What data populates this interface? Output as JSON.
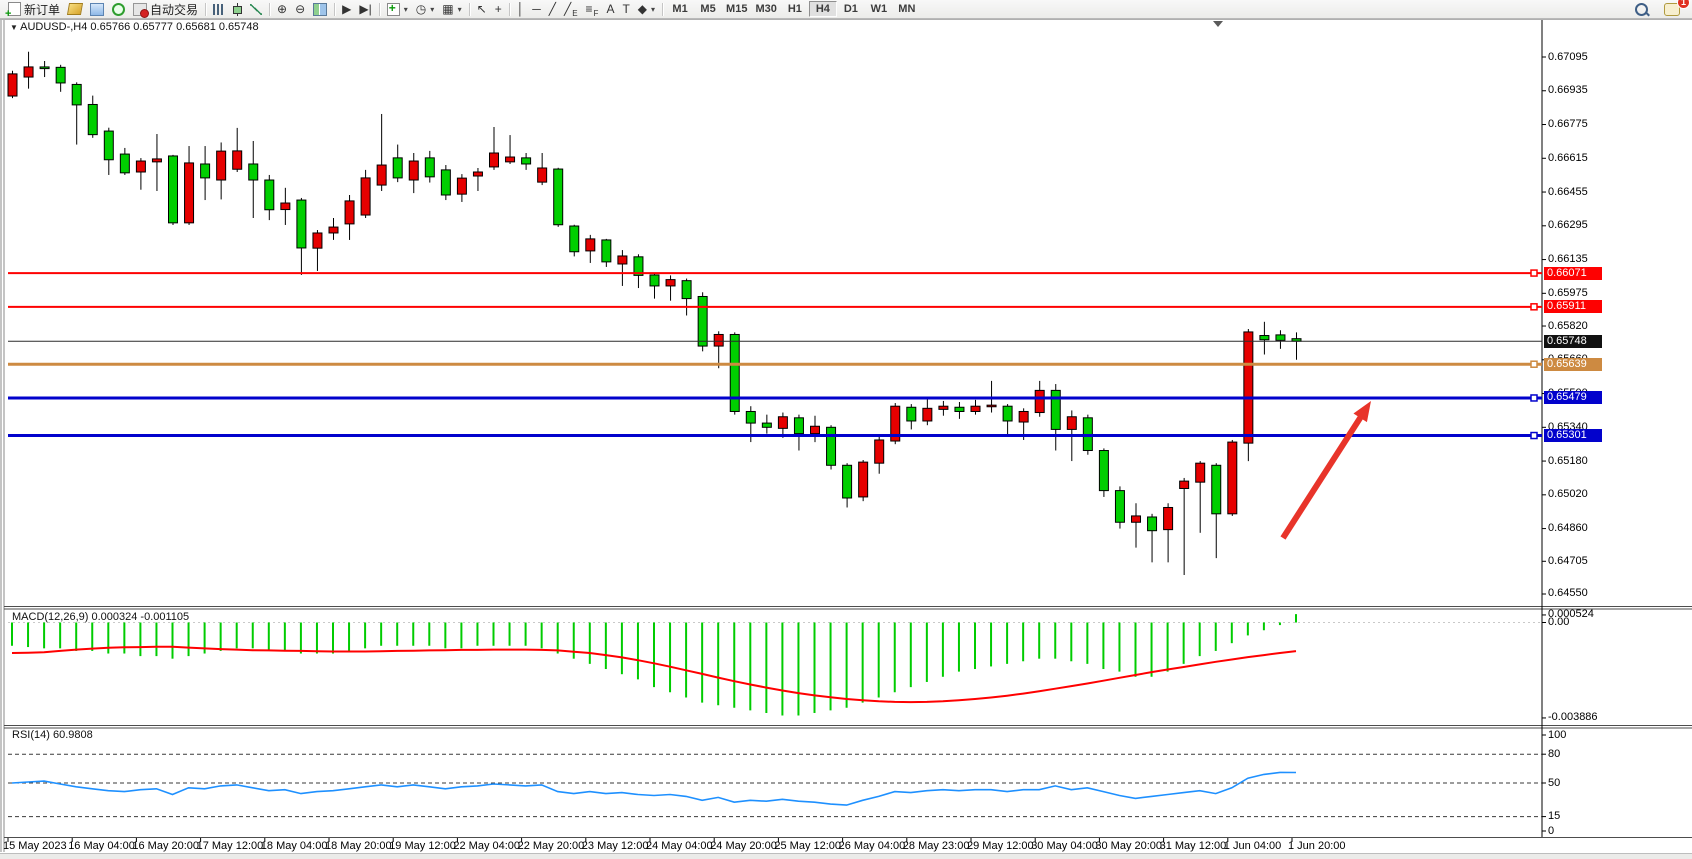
{
  "toolbar": {
    "buttons": [
      {
        "name": "new-order-button",
        "icon": "neworder",
        "label": "新订单"
      },
      {
        "name": "chart-style-button",
        "icon": "yellow"
      },
      {
        "name": "navigator-button",
        "icon": "blue"
      },
      {
        "name": "signals-button",
        "icon": "signal"
      },
      {
        "name": "autotrading-button",
        "icon": "auto",
        "label": "自动交易"
      },
      {
        "sep": true
      },
      {
        "name": "bar-chart-button",
        "icon": "bars"
      },
      {
        "name": "candlestick-chart-button",
        "icon": "candle"
      },
      {
        "name": "line-chart-button",
        "icon": "linec"
      },
      {
        "sep": true
      },
      {
        "name": "zoom-in-button",
        "glyph": "⊕"
      },
      {
        "name": "zoom-out-button",
        "glyph": "⊖"
      },
      {
        "name": "tile-windows-button",
        "icon": "tile"
      },
      {
        "sep": true
      },
      {
        "name": "auto-scroll-button",
        "glyph": "▶"
      },
      {
        "name": "chart-shift-button",
        "glyph": "▶|"
      },
      {
        "sep": true
      },
      {
        "name": "indicators-button",
        "icon": "ind",
        "caret": true
      },
      {
        "name": "periods-button",
        "glyph": "◷",
        "caret": true
      },
      {
        "name": "templates-button",
        "glyph": "▦",
        "caret": true
      },
      {
        "sep": true
      },
      {
        "name": "cursor-button",
        "glyph": "↖"
      },
      {
        "name": "crosshair-button",
        "glyph": "+"
      },
      {
        "sep": true
      },
      {
        "name": "vertical-line-button",
        "glyph": "│"
      },
      {
        "name": "horizontal-line-button",
        "glyph": "─"
      },
      {
        "name": "trendline-button",
        "glyph": "╱"
      },
      {
        "name": "equidistant-channel-button",
        "glyph": "╱",
        "sub": "E"
      },
      {
        "name": "fibonacci-button",
        "glyph": "≡",
        "sub": "F"
      },
      {
        "name": "text-button",
        "glyph": "A"
      },
      {
        "name": "text-label-button",
        "glyph": "T"
      },
      {
        "name": "arrows-button",
        "glyph": "◆",
        "caret": true
      },
      {
        "sep": true
      }
    ],
    "timeframes": [
      {
        "label": "M1"
      },
      {
        "label": "M5"
      },
      {
        "label": "M15"
      },
      {
        "label": "M30"
      },
      {
        "label": "H1"
      },
      {
        "label": "H4",
        "active": true
      },
      {
        "label": "D1"
      },
      {
        "label": "W1"
      },
      {
        "label": "MN"
      }
    ],
    "right_buttons": [
      {
        "name": "search-button",
        "icon": "search"
      },
      {
        "name": "notifications-button",
        "icon": "chat",
        "badge": "1"
      }
    ]
  },
  "chart": {
    "symbol_line": "AUDUSD-,H4  0.65766 0.65777 0.65681 0.65748",
    "symbol": "AUDUSD-",
    "period": "H4",
    "quote_open": "0.65766",
    "quote_high": "0.65777",
    "quote_low": "0.65681",
    "quote_close": "0.65748",
    "price_ticks": [
      "0.67095",
      "0.66935",
      "0.66775",
      "0.66615",
      "0.66455",
      "0.66295",
      "0.66135",
      "0.65975",
      "0.65820",
      "0.65660",
      "0.65500",
      "0.65340",
      "0.65180",
      "0.65020",
      "0.64860",
      "0.64705",
      "0.64550"
    ],
    "time_labels": [
      "15 May 2023",
      "16 May 04:00",
      "16 May 20:00",
      "17 May 12:00",
      "18 May 04:00",
      "18 May 20:00",
      "19 May 12:00",
      "22 May 04:00",
      "22 May 20:00",
      "23 May 12:00",
      "24 May 04:00",
      "24 May 20:00",
      "25 May 12:00",
      "26 May 04:00",
      "28 May 23:00",
      "29 May 12:00",
      "30 May 04:00",
      "30 May 20:00",
      "31 May 12:00",
      "1 Jun 04:00",
      "1 Jun 20:00"
    ]
  },
  "indicators": {
    "macd_label": "MACD(12,26,9) 0.000324 -0.001105",
    "rsi_label": "RSI(14) 60.9808",
    "macd_axis": [
      "0.000524",
      "0.00",
      "-0.003886"
    ],
    "rsi_axis": [
      "100",
      "80",
      "50",
      "15",
      "0"
    ]
  },
  "chart_data": [
    {
      "type": "candlestick",
      "symbol": "AUDUSD-",
      "timeframe": "H4",
      "price_range": [
        0.64488,
        0.67232
      ],
      "colors": {
        "up": "#e60000",
        "down": "#00cf00",
        "wick": "#000000",
        "outline": "#000000"
      },
      "candles_ohlc_note": "arrays are [open,high,low,close]; red body = up, green body = down (Chinese convention)",
      "candles": [
        [
          0.6691,
          0.6703,
          0.669,
          0.67015
        ],
        [
          0.67,
          0.6712,
          0.66945,
          0.67048
        ],
        [
          0.67048,
          0.67076,
          0.67,
          0.6704
        ],
        [
          0.67046,
          0.67058,
          0.6693,
          0.66972
        ],
        [
          0.66965,
          0.66975,
          0.6668,
          0.66868
        ],
        [
          0.6687,
          0.66912,
          0.66712,
          0.66727
        ],
        [
          0.66744,
          0.6676,
          0.66536,
          0.66608
        ],
        [
          0.66635,
          0.66664,
          0.66536,
          0.66546
        ],
        [
          0.6655,
          0.66616,
          0.66466,
          0.66602
        ],
        [
          0.66598,
          0.6673,
          0.6646,
          0.66612
        ],
        [
          0.66626,
          0.66631,
          0.66299,
          0.66309
        ],
        [
          0.66309,
          0.66673,
          0.66299,
          0.66593
        ],
        [
          0.66588,
          0.66673,
          0.66417,
          0.66522
        ],
        [
          0.66512,
          0.6669,
          0.6642,
          0.66649
        ],
        [
          0.66563,
          0.66759,
          0.6655,
          0.6665
        ],
        [
          0.66588,
          0.66697,
          0.66332,
          0.66512
        ],
        [
          0.66512,
          0.66536,
          0.66322,
          0.66371
        ],
        [
          0.66372,
          0.66475,
          0.66299,
          0.66403
        ],
        [
          0.66417,
          0.66427,
          0.66062,
          0.6619
        ],
        [
          0.66189,
          0.66275,
          0.66081,
          0.66261
        ],
        [
          0.66261,
          0.66332,
          0.66228,
          0.66289
        ],
        [
          0.66304,
          0.66441,
          0.66228,
          0.66413
        ],
        [
          0.66346,
          0.6656,
          0.66332,
          0.66522
        ],
        [
          0.66488,
          0.66825,
          0.6646,
          0.66583
        ],
        [
          0.66617,
          0.6668,
          0.66502,
          0.66522
        ],
        [
          0.66512,
          0.6664,
          0.6645,
          0.66602
        ],
        [
          0.66617,
          0.6665,
          0.665,
          0.66527
        ],
        [
          0.6656,
          0.66583,
          0.66417,
          0.66441
        ],
        [
          0.66445,
          0.6654,
          0.66408,
          0.66521
        ],
        [
          0.66531,
          0.66569,
          0.6646,
          0.6655
        ],
        [
          0.66574,
          0.66763,
          0.6656,
          0.6664
        ],
        [
          0.66598,
          0.66725,
          0.66588,
          0.66621
        ],
        [
          0.66617,
          0.6664,
          0.6656,
          0.66588
        ],
        [
          0.66502,
          0.6664,
          0.66488,
          0.66569
        ],
        [
          0.66564,
          0.6657,
          0.6629,
          0.663
        ],
        [
          0.66294,
          0.663,
          0.6615,
          0.66172
        ],
        [
          0.66176,
          0.66252,
          0.66119,
          0.66233
        ],
        [
          0.66228,
          0.66233,
          0.661,
          0.66124
        ],
        [
          0.66114,
          0.6618,
          0.6601,
          0.66152
        ],
        [
          0.66148,
          0.6616,
          0.66,
          0.6606
        ],
        [
          0.66062,
          0.6607,
          0.6595,
          0.6601
        ],
        [
          0.6601,
          0.6606,
          0.6594,
          0.6604
        ],
        [
          0.66035,
          0.66045,
          0.6587,
          0.6595
        ],
        [
          0.6596,
          0.6598,
          0.657,
          0.65725
        ],
        [
          0.65725,
          0.65795,
          0.6562,
          0.6578
        ],
        [
          0.6578,
          0.6579,
          0.654,
          0.65415
        ],
        [
          0.65415,
          0.6544,
          0.6527,
          0.6536
        ],
        [
          0.6536,
          0.654,
          0.6531,
          0.6534
        ],
        [
          0.65335,
          0.6541,
          0.6529,
          0.6539
        ],
        [
          0.65385,
          0.654,
          0.6523,
          0.6531
        ],
        [
          0.6531,
          0.65395,
          0.6527,
          0.65345
        ],
        [
          0.6534,
          0.6535,
          0.6514,
          0.6516
        ],
        [
          0.6516,
          0.6517,
          0.6496,
          0.65005
        ],
        [
          0.6501,
          0.65185,
          0.6499,
          0.65175
        ],
        [
          0.6517,
          0.653,
          0.6512,
          0.6528
        ],
        [
          0.65275,
          0.65455,
          0.6526,
          0.6544
        ],
        [
          0.65435,
          0.6545,
          0.6533,
          0.6537
        ],
        [
          0.6537,
          0.6548,
          0.6535,
          0.6543
        ],
        [
          0.65425,
          0.65465,
          0.65395,
          0.6544
        ],
        [
          0.65435,
          0.6546,
          0.6538,
          0.65415
        ],
        [
          0.65415,
          0.6547,
          0.654,
          0.6544
        ],
        [
          0.65438,
          0.6556,
          0.6541,
          0.65445
        ],
        [
          0.6544,
          0.6545,
          0.653,
          0.6537
        ],
        [
          0.65365,
          0.6543,
          0.6528,
          0.65415
        ],
        [
          0.6541,
          0.6556,
          0.6539,
          0.65515
        ],
        [
          0.65515,
          0.65545,
          0.6523,
          0.6533
        ],
        [
          0.6533,
          0.6542,
          0.6518,
          0.6539
        ],
        [
          0.65385,
          0.654,
          0.6521,
          0.6523
        ],
        [
          0.6523,
          0.6524,
          0.6501,
          0.6504
        ],
        [
          0.6504,
          0.6506,
          0.6486,
          0.6489
        ],
        [
          0.6489,
          0.6498,
          0.6477,
          0.6492
        ],
        [
          0.64915,
          0.6493,
          0.647,
          0.6485
        ],
        [
          0.64855,
          0.6498,
          0.647,
          0.6496
        ],
        [
          0.6505,
          0.651,
          0.6464,
          0.65085
        ],
        [
          0.6508,
          0.6518,
          0.6484,
          0.6517
        ],
        [
          0.6516,
          0.6517,
          0.6472,
          0.6493
        ],
        [
          0.6493,
          0.6528,
          0.6492,
          0.6527
        ],
        [
          0.65265,
          0.65806,
          0.6518,
          0.65792
        ],
        [
          0.65775,
          0.6584,
          0.65685,
          0.65755
        ],
        [
          0.65778,
          0.658,
          0.65712,
          0.65752
        ],
        [
          0.6576,
          0.6579,
          0.6566,
          0.65748
        ]
      ],
      "level_lines": [
        {
          "price": 0.66071,
          "label": "0.66071",
          "color": "#fe0101",
          "width": 2
        },
        {
          "price": 0.65911,
          "label": "0.65911",
          "color": "#fe0101",
          "width": 2
        },
        {
          "price": 0.65748,
          "label": "0.65748",
          "color": "#2b2b2b",
          "width": 1,
          "badge": "#111111"
        },
        {
          "price": 0.65639,
          "label": "0.65639",
          "color": "#cd8a41",
          "width": 3
        },
        {
          "price": 0.65479,
          "label": "0.65479",
          "color": "#0202cc",
          "width": 3
        },
        {
          "price": 0.65301,
          "label": "0.65301",
          "color": "#0202cc",
          "width": 3
        }
      ],
      "annotation_arrow": {
        "from": [
          1283,
          538
        ],
        "to": [
          1371,
          401
        ],
        "color": "#e8342a",
        "width": 6
      }
    },
    {
      "type": "bar",
      "name": "MACD(12,26,9)",
      "last_main": 0.000324,
      "last_signal": -0.001105,
      "ylim": [
        -0.003886,
        0.000524
      ],
      "colors": {
        "histogram": "#00cc00",
        "signal": "#ff0000"
      },
      "histogram": [
        -0.0009,
        -0.00095,
        -0.001,
        -0.001,
        -0.0011,
        -0.0011,
        -0.0012,
        -0.0012,
        -0.0013,
        -0.0013,
        -0.0014,
        -0.0013,
        -0.0012,
        -0.0011,
        -0.001,
        -0.001,
        -0.0011,
        -0.0011,
        -0.0012,
        -0.0012,
        -0.0012,
        -0.0011,
        -0.001,
        -0.0009,
        -0.0009,
        -0.0009,
        -0.0009,
        -0.001,
        -0.001,
        -0.0009,
        -0.0009,
        -0.0009,
        -0.0009,
        -0.001,
        -0.0012,
        -0.0014,
        -0.0016,
        -0.0018,
        -0.002,
        -0.0022,
        -0.0025,
        -0.0027,
        -0.0029,
        -0.0031,
        -0.0032,
        -0.0033,
        -0.0034,
        -0.0035,
        -0.0036,
        -0.0036,
        -0.0035,
        -0.0034,
        -0.0033,
        -0.0031,
        -0.0029,
        -0.0027,
        -0.0025,
        -0.0023,
        -0.0021,
        -0.0019,
        -0.0018,
        -0.0017,
        -0.0016,
        -0.0015,
        -0.0014,
        -0.0014,
        -0.0015,
        -0.0016,
        -0.0018,
        -0.0019,
        -0.0021,
        -0.0021,
        -0.0019,
        -0.0016,
        -0.0013,
        -0.0011,
        -0.0008,
        -0.0005,
        -0.0003,
        -0.0001,
        0.000324
      ],
      "signal": [
        -0.00118,
        -0.00117,
        -0.00115,
        -0.0011,
        -0.00105,
        -0.00101,
        -0.00098,
        -0.00096,
        -0.00095,
        -0.00094,
        -0.00094,
        -0.00097,
        -0.001,
        -0.00103,
        -0.00105,
        -0.00107,
        -0.00108,
        -0.00109,
        -0.0011,
        -0.00111,
        -0.00112,
        -0.00112,
        -0.00112,
        -0.00111,
        -0.0011,
        -0.00109,
        -0.00108,
        -0.00107,
        -0.00106,
        -0.00106,
        -0.00105,
        -0.00105,
        -0.00105,
        -0.00106,
        -0.00108,
        -0.00113,
        -0.00118,
        -0.00126,
        -0.00135,
        -0.00146,
        -0.00158,
        -0.00171,
        -0.00185,
        -0.00199,
        -0.00213,
        -0.00227,
        -0.0024,
        -0.00252,
        -0.00263,
        -0.00273,
        -0.00282,
        -0.00289,
        -0.00296,
        -0.00301,
        -0.00305,
        -0.00307,
        -0.00308,
        -0.00307,
        -0.00305,
        -0.00301,
        -0.00296,
        -0.0029,
        -0.00283,
        -0.00275,
        -0.00266,
        -0.00256,
        -0.00246,
        -0.00236,
        -0.00225,
        -0.00214,
        -0.00203,
        -0.00192,
        -0.00182,
        -0.00172,
        -0.00162,
        -0.00152,
        -0.00143,
        -0.00134,
        -0.00126,
        -0.00118,
        -0.001105
      ]
    },
    {
      "type": "line",
      "name": "RSI(14)",
      "last_value": 60.9808,
      "ylim": [
        0,
        100
      ],
      "levels": [
        80,
        50,
        15
      ],
      "color": "#1e90ff",
      "values": [
        50,
        51,
        52,
        49,
        46,
        44,
        42,
        41,
        43,
        44,
        38,
        45,
        44,
        47,
        48,
        45,
        42,
        43,
        39,
        41,
        42,
        44,
        46,
        48,
        46,
        48,
        46,
        44,
        46,
        47,
        49,
        48,
        47,
        48,
        41,
        39,
        41,
        39,
        40,
        38,
        37,
        38,
        36,
        32,
        35,
        30,
        32,
        31,
        33,
        31,
        30,
        28,
        27,
        32,
        36,
        41,
        40,
        42,
        43,
        42,
        43,
        43,
        41,
        43,
        43,
        47,
        43,
        45,
        41,
        37,
        34,
        36,
        38,
        40,
        42,
        39,
        45,
        55,
        59,
        61,
        60.98
      ]
    }
  ]
}
